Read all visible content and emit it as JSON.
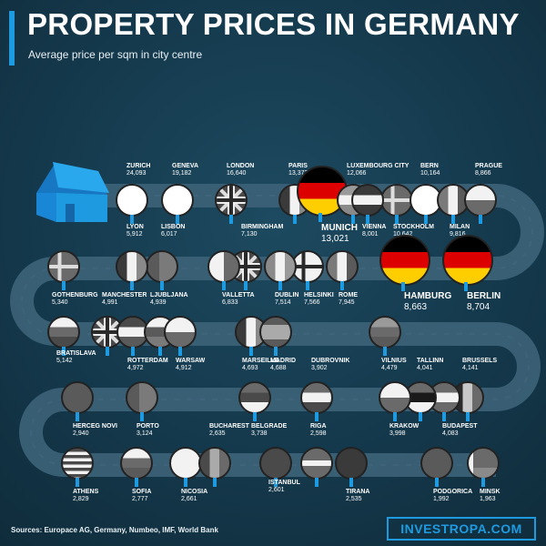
{
  "header": {
    "title": "PROPERTY PRICES IN GERMANY",
    "subtitle": "Average price per sqm in city centre"
  },
  "colors": {
    "accent": "#1e9be0",
    "background": "#163c50",
    "road": "#3b6177"
  },
  "footer": {
    "sources": "Sources: Europace AG, Germany, Numbeo, IMF, World Bank",
    "brand": "INVESTROPA.COM"
  },
  "chart_data": {
    "type": "table",
    "unit": "per sqm",
    "cities": [
      {
        "name": "ZURICH",
        "value": "24,093",
        "flag": "switzerland"
      },
      {
        "name": "GENEVA",
        "value": "19,182",
        "flag": "switzerland"
      },
      {
        "name": "LONDON",
        "value": "16,640",
        "flag": "uk"
      },
      {
        "name": "PARIS",
        "value": "13,373",
        "flag": "france"
      },
      {
        "name": "MUNICH",
        "value": "13,021",
        "flag": "germany"
      },
      {
        "name": "LUXEMBOURG CITY",
        "value": "12,066",
        "flag": "luxembourg"
      },
      {
        "name": "STOCKHOLM",
        "value": "10,642",
        "flag": "sweden"
      },
      {
        "name": "BERN",
        "value": "10,164",
        "flag": "switzerland"
      },
      {
        "name": "MILAN",
        "value": "9,816",
        "flag": "italy"
      },
      {
        "name": "PRAGUE",
        "value": "8,866",
        "flag": "czech"
      },
      {
        "name": "BERLIN",
        "value": "8,704",
        "flag": "germany"
      },
      {
        "name": "HAMBURG",
        "value": "8,663",
        "flag": "germany"
      },
      {
        "name": "VIENNA",
        "value": "8,001",
        "flag": "austria"
      },
      {
        "name": "ROME",
        "value": "7,945",
        "flag": "italy"
      },
      {
        "name": "HELSINKI",
        "value": "7,566",
        "flag": "finland"
      },
      {
        "name": "DUBLIN",
        "value": "7,514",
        "flag": "ireland"
      },
      {
        "name": "BIRMINGHAM",
        "value": "7,130",
        "flag": "uk"
      },
      {
        "name": "VALLETTA",
        "value": "6,833",
        "flag": "malta"
      },
      {
        "name": "LISBON",
        "value": "6,017",
        "flag": "portugal"
      },
      {
        "name": "LYON",
        "value": "5,912",
        "flag": "france"
      },
      {
        "name": "GOTHENBURG",
        "value": "5,340",
        "flag": "sweden"
      },
      {
        "name": "BRATISLAVA",
        "value": "5,142",
        "flag": "slovakia"
      },
      {
        "name": "MANCHESTER",
        "value": "4,991",
        "flag": "uk"
      },
      {
        "name": "ROTTERDAM",
        "value": "4,972",
        "flag": "netherlands"
      },
      {
        "name": "LJUBLJANA",
        "value": "4,939",
        "flag": "slovenia"
      },
      {
        "name": "WARSAW",
        "value": "4,912",
        "flag": "poland"
      },
      {
        "name": "MARSEILLE",
        "value": "4,693",
        "flag": "france"
      },
      {
        "name": "MADRID",
        "value": "4,688",
        "flag": "spain"
      },
      {
        "name": "VILNIUS",
        "value": "4,479",
        "flag": "lithuania"
      },
      {
        "name": "BRUSSELS",
        "value": "4,141",
        "flag": "belgium"
      },
      {
        "name": "BUDAPEST",
        "value": "4,083",
        "flag": "hungary"
      },
      {
        "name": "TALLINN",
        "value": "4,041",
        "flag": "estonia"
      },
      {
        "name": "KRAKOW",
        "value": "3,998",
        "flag": "poland"
      },
      {
        "name": "DUBROVNIK",
        "value": "3,902",
        "flag": "croatia"
      },
      {
        "name": "BELGRADE",
        "value": "3,738",
        "flag": "serbia"
      },
      {
        "name": "PORTO",
        "value": "3,124",
        "flag": "portugal"
      },
      {
        "name": "HERCEG NOVI",
        "value": "2,940",
        "flag": "montenegro"
      },
      {
        "name": "ATHENS",
        "value": "2,829",
        "flag": "greece"
      },
      {
        "name": "SOFIA",
        "value": "2,777",
        "flag": "bulgaria"
      },
      {
        "name": "NICOSIA",
        "value": "2,661",
        "flag": "cyprus"
      },
      {
        "name": "BUCHAREST",
        "value": "2,635",
        "flag": "romania"
      },
      {
        "name": "ISTANBUL",
        "value": "2,601",
        "flag": "turkey"
      },
      {
        "name": "RIGA",
        "value": "2,598",
        "flag": "latvia"
      },
      {
        "name": "TIRANA",
        "value": "2,535",
        "flag": "albania"
      },
      {
        "name": "PODGORICA",
        "value": "1,992",
        "flag": "montenegro"
      },
      {
        "name": "MINSK",
        "value": "1,963",
        "flag": "belarus"
      }
    ]
  }
}
